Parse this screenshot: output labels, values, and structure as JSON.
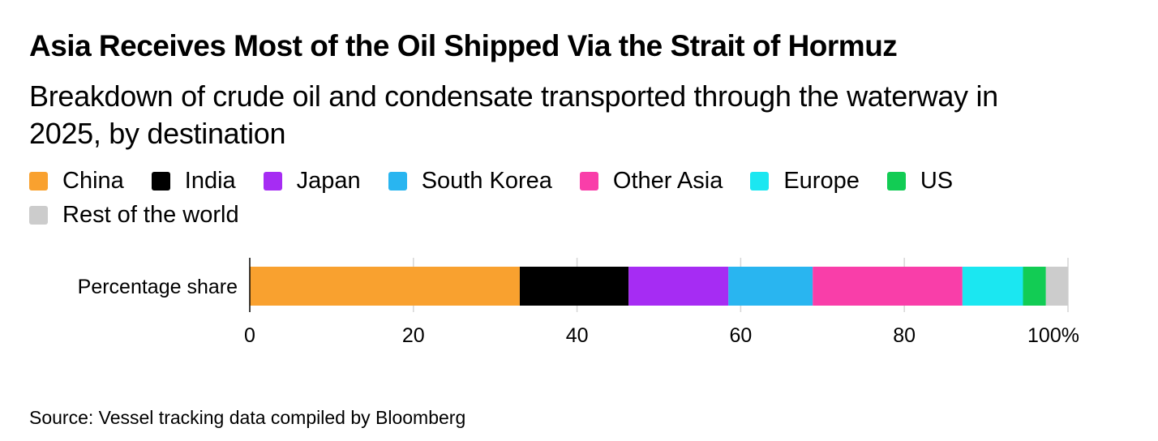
{
  "chart_data": {
    "type": "bar",
    "orientation": "horizontal",
    "stacked": true,
    "title": "Asia Receives Most of the Oil Shipped Via the Strait of Hormuz",
    "subtitle": "Breakdown of crude oil and condensate transported through the waterway in 2025, by destination",
    "categories": [
      "Percentage share"
    ],
    "series": [
      {
        "name": "China",
        "color": "#f9a12f",
        "values": [
          33.0
        ]
      },
      {
        "name": "India",
        "color": "#000000",
        "values": [
          13.3
        ]
      },
      {
        "name": "Japan",
        "color": "#a62cf3",
        "values": [
          12.2
        ]
      },
      {
        "name": "South Korea",
        "color": "#29b5f0",
        "values": [
          10.3
        ]
      },
      {
        "name": "Other Asia",
        "color": "#f93ea9",
        "values": [
          18.3
        ]
      },
      {
        "name": "Europe",
        "color": "#1be7f1",
        "values": [
          7.4
        ]
      },
      {
        "name": "US",
        "color": "#12cc54",
        "values": [
          2.8
        ]
      },
      {
        "name": "Rest of the world",
        "color": "#cccccc",
        "values": [
          2.7
        ]
      }
    ],
    "xlim": [
      0,
      100
    ],
    "xticks": [
      0,
      20,
      40,
      60,
      80,
      100
    ],
    "xtick_labels": [
      "0",
      "20",
      "40",
      "60",
      "80",
      "100%"
    ],
    "xlabel": "",
    "ylabel": "",
    "grid": true,
    "legend_position": "top"
  },
  "source": "Source: Vessel tracking data compiled by Bloomberg"
}
